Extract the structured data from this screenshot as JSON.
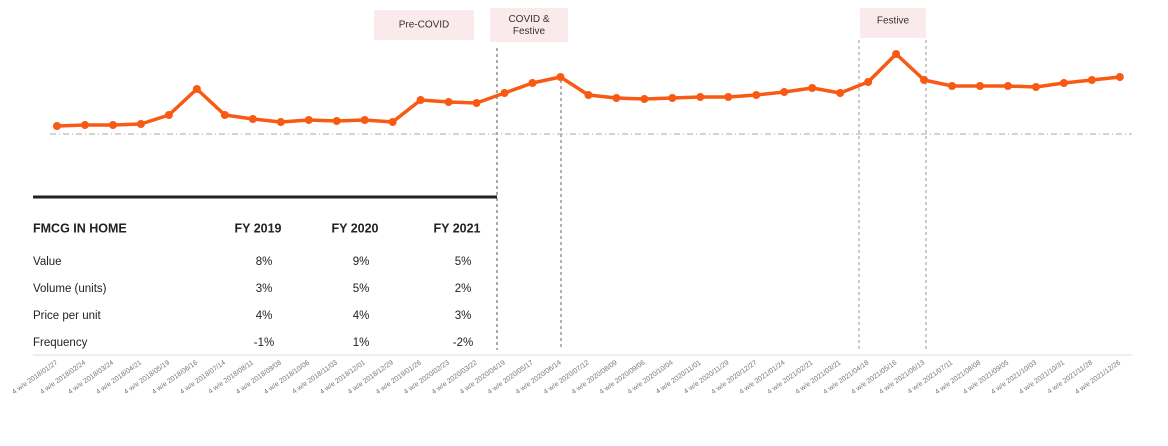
{
  "chart_data": {
    "type": "line",
    "annotations": [
      "Pre-COVID",
      "COVID &\nFestive",
      "Festive"
    ],
    "categories": [
      "4 w/e 2018/01/27",
      "4 w/e 2018/02/24",
      "4 w/e 2018/03/24",
      "4 w/e 2018/04/21",
      "4 w/e 2018/05/19",
      "4 w/e 2018/06/16",
      "4 w/e 2018/07/14",
      "4 w/e 2018/08/11",
      "4 w/e 2018/09/08",
      "4 w/e 2018/10/06",
      "4 w/e 2018/11/03",
      "4 w/e 2018/12/01",
      "4 w/e 2018/12/29",
      "4 w/e 2019/01/26",
      "4 w/e 2020/02/23",
      "4 w/e 2020/03/22",
      "4 w/e 2020/04/19",
      "4 w/e 2020/05/17",
      "4 w/e 2020/06/14",
      "4 w/e 2020/07/12",
      "4 w/e 2020/08/09",
      "4 w/e 2020/09/06",
      "4 w/e 2020/10/04",
      "4 w/e 2020/11/01",
      "4 w/e 2020/11/29",
      "4 w/e 2020/12/27",
      "4 w/e 2021/01/24",
      "4 w/e 2021/02/21",
      "4 w/e 2021/03/21",
      "4 w/e 2021/04/18",
      "4 w/e 2021/05/16",
      "4 w/e 2021/06/13",
      "4 w/e 2021/07/11",
      "4 w/e 2021/08/08",
      "4 w/e 2021/09/05",
      "4 w/e 2021/10/03",
      "4 w/e 2021/10/31",
      "4 w/e 2021/11/28",
      "4 w/e 2021/12/26"
    ],
    "series": [
      {
        "color": "#f85a14",
        "values": [
          8,
          9,
          9,
          10,
          19,
          45,
          19,
          15,
          12,
          14,
          13,
          14,
          12,
          34,
          32,
          31,
          41,
          51,
          57,
          39,
          36,
          35,
          36,
          37,
          37,
          39,
          42,
          46,
          41,
          52,
          80,
          54,
          48,
          48,
          48,
          47,
          51,
          54,
          57
        ]
      }
    ],
    "ylim": [
      -60,
      100
    ],
    "zero_line": true
  },
  "table": {
    "header": [
      "FMCG IN HOME",
      "FY 2019",
      "FY 2020",
      "FY 2021"
    ],
    "rows": [
      [
        "Value",
        "8%",
        "9%",
        "5%"
      ],
      [
        "Volume (units)",
        "3%",
        "5%",
        "2%"
      ],
      [
        "Price per unit",
        "4%",
        "4%",
        "3%"
      ],
      [
        "Frequency",
        "-1%",
        "1%",
        "-2%"
      ]
    ]
  }
}
